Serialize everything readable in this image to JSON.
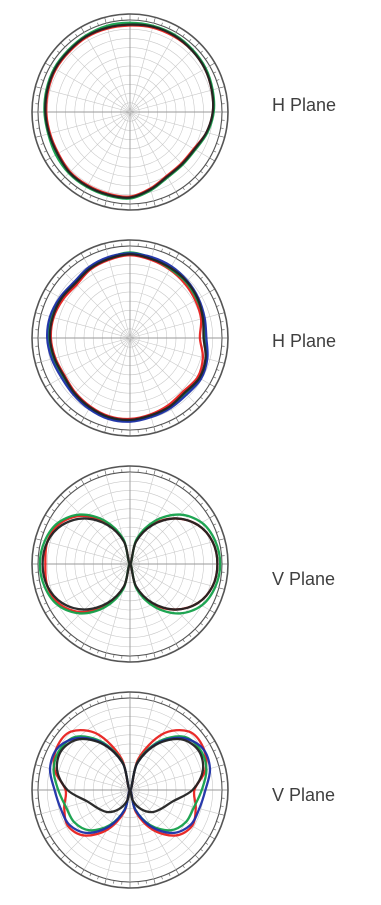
{
  "colors": {
    "red": "#e8201e",
    "green": "#13a04a",
    "blue": "#1c2fa8",
    "black": "#222222",
    "grid": "#c9c9c9",
    "ring": "#555555",
    "label": "#3f3f3f"
  },
  "chart_data": [
    {
      "type": "polar",
      "label": "H Plane",
      "rlim": [
        0,
        1
      ],
      "angle_step_deg": 15,
      "series": [
        {
          "color": "red",
          "r": [
            0.94,
            0.95,
            0.95,
            0.95,
            0.94,
            0.92,
            0.9,
            0.86,
            0.8,
            0.79,
            0.8,
            0.86,
            0.92,
            0.92,
            0.92,
            0.92,
            0.9,
            0.9,
            0.91,
            0.92,
            0.93,
            0.93,
            0.94,
            0.94
          ]
        },
        {
          "color": "green",
          "r": [
            0.97,
            0.97,
            0.97,
            0.96,
            0.95,
            0.93,
            0.91,
            0.87,
            0.82,
            0.81,
            0.82,
            0.88,
            0.94,
            0.94,
            0.94,
            0.94,
            0.93,
            0.92,
            0.93,
            0.94,
            0.95,
            0.95,
            0.96,
            0.97
          ]
        },
        {
          "color": "black",
          "r": [
            0.95,
            0.96,
            0.96,
            0.95,
            0.94,
            0.92,
            0.9,
            0.86,
            0.81,
            0.8,
            0.81,
            0.87,
            0.93,
            0.93,
            0.93,
            0.93,
            0.91,
            0.91,
            0.92,
            0.93,
            0.94,
            0.94,
            0.95,
            0.95
          ]
        }
      ]
    },
    {
      "type": "polar",
      "label": "H Plane",
      "rlim": [
        0,
        1
      ],
      "angle_step_deg": 15,
      "series": [
        {
          "color": "red",
          "r": [
            0.9,
            0.88,
            0.86,
            0.84,
            0.82,
            0.8,
            0.76,
            0.82,
            0.85,
            0.82,
            0.84,
            0.86,
            0.88,
            0.88,
            0.86,
            0.84,
            0.82,
            0.84,
            0.86,
            0.86,
            0.84,
            0.82,
            0.86,
            0.88
          ]
        },
        {
          "color": "green",
          "r": [
            0.93,
            0.9,
            0.87,
            0.86,
            0.84,
            0.83,
            0.81,
            0.86,
            0.88,
            0.85,
            0.87,
            0.88,
            0.9,
            0.9,
            0.88,
            0.86,
            0.84,
            0.86,
            0.88,
            0.89,
            0.87,
            0.85,
            0.88,
            0.9
          ]
        },
        {
          "color": "blue",
          "r": [
            0.92,
            0.91,
            0.9,
            0.88,
            0.86,
            0.84,
            0.83,
            0.87,
            0.89,
            0.87,
            0.88,
            0.89,
            0.91,
            0.91,
            0.89,
            0.87,
            0.86,
            0.88,
            0.9,
            0.9,
            0.88,
            0.86,
            0.89,
            0.91
          ]
        },
        {
          "color": "black",
          "r": [
            0.91,
            0.89,
            0.88,
            0.87,
            0.85,
            0.82,
            0.8,
            0.85,
            0.87,
            0.84,
            0.86,
            0.87,
            0.89,
            0.89,
            0.87,
            0.85,
            0.83,
            0.85,
            0.87,
            0.87,
            0.86,
            0.84,
            0.87,
            0.89
          ]
        }
      ]
    },
    {
      "type": "polar",
      "label": "V Plane",
      "rlim": [
        0,
        1
      ],
      "angle_step_deg": 15,
      "series": [
        {
          "color": "red",
          "r": [
            0.0,
            0.26,
            0.5,
            0.7,
            0.85,
            0.93,
            0.95,
            0.93,
            0.85,
            0.7,
            0.5,
            0.26,
            0.0,
            0.26,
            0.52,
            0.74,
            0.88,
            0.93,
            0.92,
            0.93,
            0.88,
            0.74,
            0.52,
            0.26
          ]
        },
        {
          "color": "green",
          "r": [
            0.0,
            0.28,
            0.54,
            0.76,
            0.9,
            0.96,
            0.98,
            0.96,
            0.9,
            0.76,
            0.54,
            0.28,
            0.0,
            0.28,
            0.54,
            0.76,
            0.9,
            0.96,
            0.98,
            0.96,
            0.9,
            0.76,
            0.54,
            0.28
          ]
        },
        {
          "color": "black",
          "r": [
            0.0,
            0.25,
            0.49,
            0.7,
            0.85,
            0.93,
            0.95,
            0.93,
            0.85,
            0.7,
            0.49,
            0.25,
            0.0,
            0.25,
            0.49,
            0.7,
            0.85,
            0.93,
            0.95,
            0.93,
            0.85,
            0.7,
            0.49,
            0.25
          ]
        }
      ]
    },
    {
      "type": "polar",
      "label": "V Plane",
      "rlim": [
        0,
        1
      ],
      "angle_step_deg": 15,
      "series": [
        {
          "color": "red",
          "r": [
            0.0,
            0.35,
            0.7,
            0.9,
            0.92,
            0.85,
            0.7,
            0.74,
            0.78,
            0.7,
            0.5,
            0.25,
            0.0,
            0.25,
            0.5,
            0.7,
            0.78,
            0.74,
            0.7,
            0.85,
            0.92,
            0.9,
            0.7,
            0.35
          ]
        },
        {
          "color": "green",
          "r": [
            0.0,
            0.31,
            0.6,
            0.82,
            0.88,
            0.86,
            0.78,
            0.72,
            0.7,
            0.62,
            0.44,
            0.22,
            0.0,
            0.22,
            0.44,
            0.62,
            0.7,
            0.72,
            0.78,
            0.86,
            0.88,
            0.82,
            0.6,
            0.31
          ]
        },
        {
          "color": "blue",
          "r": [
            0.0,
            0.3,
            0.58,
            0.8,
            0.91,
            0.9,
            0.82,
            0.78,
            0.76,
            0.66,
            0.46,
            0.22,
            0.0,
            0.22,
            0.46,
            0.66,
            0.76,
            0.78,
            0.82,
            0.9,
            0.91,
            0.8,
            0.58,
            0.3
          ]
        },
        {
          "color": "black",
          "r": [
            0.0,
            0.3,
            0.57,
            0.78,
            0.86,
            0.82,
            0.68,
            0.48,
            0.4,
            0.34,
            0.24,
            0.12,
            0.0,
            0.12,
            0.24,
            0.34,
            0.4,
            0.48,
            0.68,
            0.82,
            0.86,
            0.78,
            0.57,
            0.3
          ]
        }
      ]
    }
  ]
}
